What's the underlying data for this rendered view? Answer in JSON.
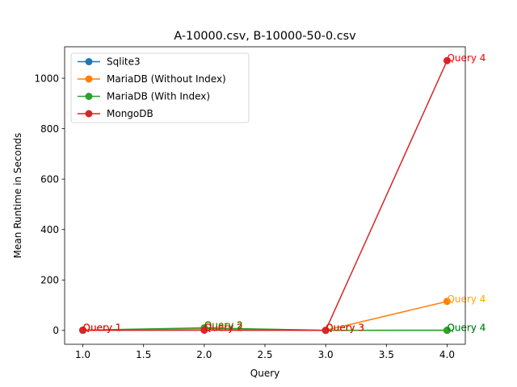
{
  "chart_data": {
    "type": "line",
    "title": "A-10000.csv, B-10000-50-0.csv",
    "xlabel": "Query",
    "ylabel": "Mean Runtime in Seconds",
    "xlim": [
      0.85,
      4.15
    ],
    "ylim": [
      -55,
      1125
    ],
    "xticks": [
      1.0,
      1.5,
      2.0,
      2.5,
      3.0,
      3.5,
      4.0
    ],
    "xtick_labels": [
      "1.0",
      "1.5",
      "2.0",
      "2.5",
      "3.0",
      "3.5",
      "4.0"
    ],
    "yticks": [
      0,
      200,
      400,
      600,
      800,
      1000
    ],
    "ytick_labels": [
      "0",
      "200",
      "400",
      "600",
      "800",
      "1000"
    ],
    "grid": false,
    "legend_position": "top-left",
    "x": [
      1,
      2,
      3,
      4
    ],
    "point_labels": [
      "Query 1",
      "Query 2",
      "Query 3",
      "Query 4"
    ],
    "series": [
      {
        "name": "Sqlite3",
        "color": "#1f77b4",
        "label_color": "#1f77b4",
        "values": [
          0.5,
          1.5,
          0.3,
          0.5
        ]
      },
      {
        "name": "MariaDB (Without Index)",
        "color": "#ff7f0e",
        "label_color": "#ffa500",
        "values": [
          1.0,
          8.0,
          0.5,
          115
        ]
      },
      {
        "name": "MariaDB (With Index)",
        "color": "#2ca02c",
        "label_color": "#008000",
        "values": [
          1.0,
          10.0,
          0.3,
          0.5
        ]
      },
      {
        "name": "MongoDB",
        "color": "#d62728",
        "label_color": "#ff0000",
        "values": [
          0.5,
          1.0,
          0.2,
          1070
        ]
      }
    ]
  }
}
